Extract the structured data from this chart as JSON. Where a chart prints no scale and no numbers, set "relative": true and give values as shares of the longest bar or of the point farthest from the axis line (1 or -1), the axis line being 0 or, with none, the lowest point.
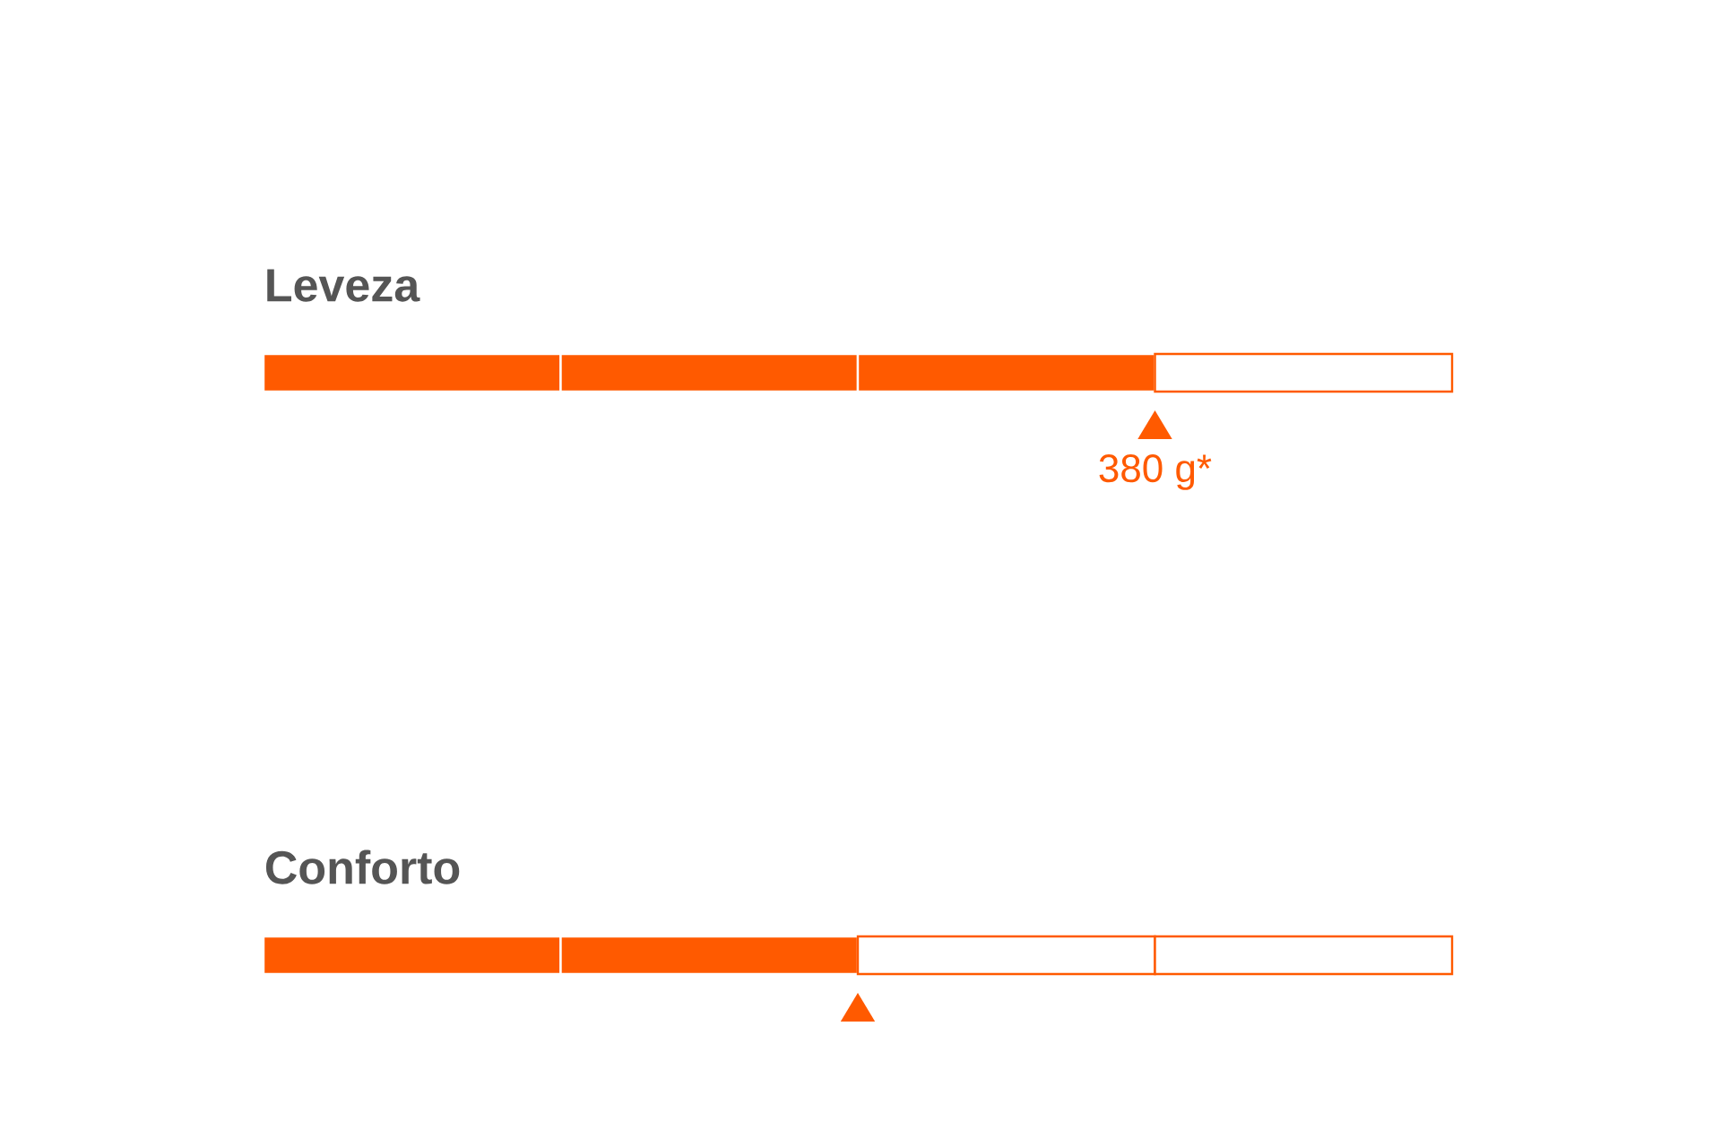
{
  "chart_data": [
    {
      "type": "bar",
      "orientation": "horizontal",
      "stacked": true,
      "relative": true,
      "title": "Leveza",
      "categories": [
        null
      ],
      "series": [
        {
          "color": "#ff5a00",
          "values": [
            0.25
          ]
        },
        {
          "color": "#ff5a00",
          "values": [
            0.25
          ]
        },
        {
          "color": "#ff5a00",
          "values": [
            0.25
          ]
        },
        {
          "color": "#ffffff",
          "values": [
            0.25
          ]
        }
      ],
      "annotations": [
        "380 g*"
      ]
    },
    {
      "type": "bar",
      "orientation": "horizontal",
      "stacked": true,
      "relative": true,
      "title": "Conforto",
      "categories": [
        null
      ],
      "series": [
        {
          "color": "#ff5a00",
          "values": [
            0.25
          ]
        },
        {
          "color": "#ff5a00",
          "values": [
            0.25
          ]
        },
        {
          "color": "#ffffff",
          "values": [
            0.25
          ]
        },
        {
          "color": "#ffffff",
          "values": [
            0.25
          ]
        }
      ]
    }
  ]
}
